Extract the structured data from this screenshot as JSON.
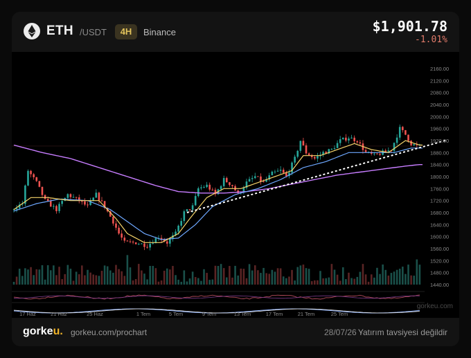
{
  "header": {
    "base": "ETH",
    "quote": "/USDT",
    "timeframe": "4H",
    "exchange": "Binance",
    "price": "$1,901.78",
    "change": "-1.01%",
    "icon": "ethereum-icon"
  },
  "footer": {
    "brand_main": "gorke",
    "brand_accent": "u.",
    "url": "gorkeu.com/prochart",
    "date": "28/07/26",
    "separator": "·",
    "disclaimer": "Yatırım tavsiyesi değildir"
  },
  "watermark": "gorkeu.com",
  "colors": {
    "up": "#26a69a",
    "down": "#ef5350",
    "ema_fast": "#f5d36a",
    "ema_mid": "#6ea8ff",
    "ema_slow": "#c77dff",
    "accent": "#f0b429",
    "trendline": "#ffffff"
  },
  "chart_data": {
    "type": "candlestick",
    "y_axis": {
      "range": [
        1440,
        2160
      ],
      "ticks": [
        "2160.00",
        "2120.00",
        "2080.00",
        "2040.00",
        "2000.00",
        "1960.00",
        "1920.00",
        "1880.00",
        "1840.00",
        "1800.00",
        "1760.00",
        "1720.00",
        "1680.00",
        "1640.00",
        "1600.00",
        "1560.00",
        "1520.00",
        "1480.00",
        "1440.00"
      ],
      "tick_values": [
        2160,
        2120,
        2080,
        2040,
        2000,
        1960,
        1920,
        1880,
        1840,
        1800,
        1760,
        1720,
        1680,
        1640,
        1600,
        1560,
        1520,
        1480,
        1440
      ]
    },
    "x_axis": {
      "labels": [
        "17 Haz",
        "21 Haz",
        "25 Haz",
        "1 Tem",
        "5 Tem",
        "9 Tem",
        "13 Tem",
        "17 Tem",
        "21 Tem",
        "25 Tem"
      ]
    },
    "price_path": [
      [
        0,
        1690
      ],
      [
        4,
        1710
      ],
      [
        6,
        1820
      ],
      [
        9,
        1780
      ],
      [
        12,
        1720
      ],
      [
        16,
        1690
      ],
      [
        20,
        1740
      ],
      [
        24,
        1720
      ],
      [
        27,
        1700
      ],
      [
        30,
        1740
      ],
      [
        33,
        1700
      ],
      [
        36,
        1650
      ],
      [
        38,
        1610
      ],
      [
        40,
        1580
      ],
      [
        44,
        1580
      ],
      [
        48,
        1570
      ],
      [
        52,
        1600
      ],
      [
        55,
        1580
      ],
      [
        58,
        1610
      ],
      [
        61,
        1680
      ],
      [
        64,
        1700
      ],
      [
        66,
        1760
      ],
      [
        69,
        1770
      ],
      [
        72,
        1740
      ],
      [
        75,
        1790
      ],
      [
        78,
        1770
      ],
      [
        80,
        1740
      ],
      [
        83,
        1780
      ],
      [
        86,
        1800
      ],
      [
        89,
        1780
      ],
      [
        92,
        1810
      ],
      [
        95,
        1820
      ],
      [
        97,
        1800
      ],
      [
        100,
        1860
      ],
      [
        102,
        1920
      ],
      [
        104,
        1880
      ],
      [
        107,
        1860
      ],
      [
        110,
        1880
      ],
      [
        113,
        1890
      ],
      [
        116,
        1920
      ],
      [
        119,
        1930
      ],
      [
        122,
        1920
      ],
      [
        125,
        1880
      ],
      [
        128,
        1870
      ],
      [
        131,
        1880
      ],
      [
        134,
        1890
      ],
      [
        137,
        1960
      ],
      [
        139,
        1940
      ],
      [
        141,
        1910
      ],
      [
        143,
        1902
      ]
    ],
    "ema_fast": [
      [
        0,
        1690
      ],
      [
        6,
        1730
      ],
      [
        12,
        1730
      ],
      [
        20,
        1720
      ],
      [
        30,
        1720
      ],
      [
        36,
        1660
      ],
      [
        40,
        1610
      ],
      [
        46,
        1580
      ],
      [
        52,
        1580
      ],
      [
        58,
        1610
      ],
      [
        62,
        1660
      ],
      [
        68,
        1730
      ],
      [
        74,
        1760
      ],
      [
        80,
        1760
      ],
      [
        86,
        1780
      ],
      [
        92,
        1800
      ],
      [
        98,
        1820
      ],
      [
        102,
        1870
      ],
      [
        108,
        1870
      ],
      [
        114,
        1890
      ],
      [
        120,
        1910
      ],
      [
        126,
        1890
      ],
      [
        132,
        1880
      ],
      [
        138,
        1920
      ],
      [
        143,
        1905
      ]
    ],
    "ema_mid": [
      [
        0,
        1685
      ],
      [
        8,
        1710
      ],
      [
        16,
        1725
      ],
      [
        26,
        1720
      ],
      [
        34,
        1690
      ],
      [
        40,
        1650
      ],
      [
        46,
        1610
      ],
      [
        52,
        1590
      ],
      [
        58,
        1595
      ],
      [
        64,
        1640
      ],
      [
        70,
        1700
      ],
      [
        78,
        1740
      ],
      [
        86,
        1760
      ],
      [
        94,
        1790
      ],
      [
        102,
        1830
      ],
      [
        110,
        1850
      ],
      [
        118,
        1880
      ],
      [
        126,
        1880
      ],
      [
        134,
        1880
      ],
      [
        140,
        1895
      ],
      [
        143,
        1895
      ]
    ],
    "ema_slow": [
      [
        0,
        1905
      ],
      [
        10,
        1880
      ],
      [
        20,
        1860
      ],
      [
        30,
        1830
      ],
      [
        40,
        1800
      ],
      [
        50,
        1770
      ],
      [
        58,
        1750
      ],
      [
        66,
        1745
      ],
      [
        74,
        1745
      ],
      [
        82,
        1750
      ],
      [
        90,
        1760
      ],
      [
        98,
        1775
      ],
      [
        106,
        1790
      ],
      [
        114,
        1805
      ],
      [
        122,
        1815
      ],
      [
        130,
        1825
      ],
      [
        138,
        1835
      ],
      [
        143,
        1840
      ]
    ],
    "trendline": [
      [
        61,
        1680
      ],
      [
        152,
        1920
      ]
    ]
  }
}
